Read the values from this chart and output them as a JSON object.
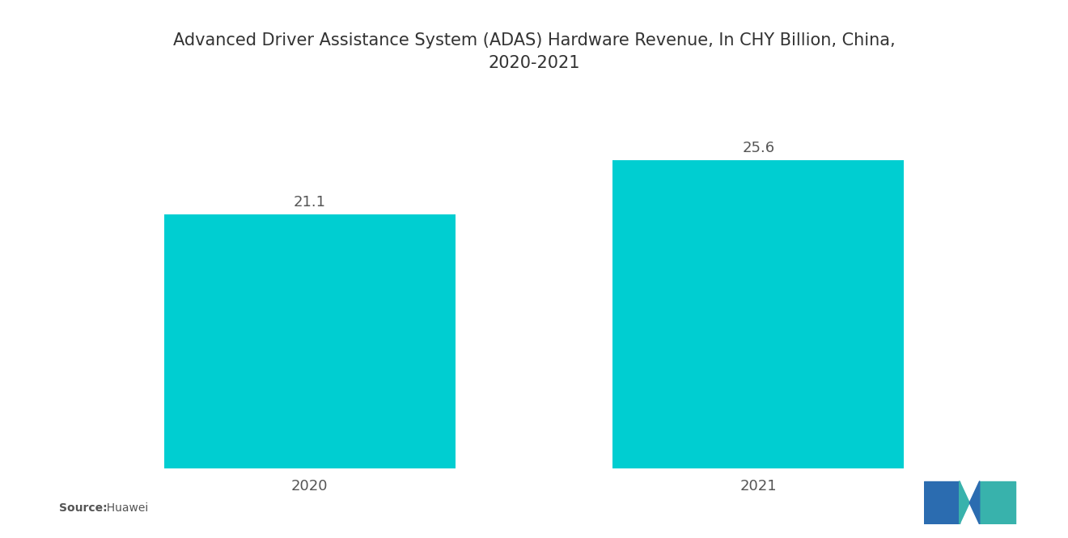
{
  "title": "Advanced Driver Assistance System (ADAS) Hardware Revenue, In CHY Billion, China,\n2020-2021",
  "categories": [
    "2020",
    "2021"
  ],
  "values": [
    21.1,
    25.6
  ],
  "bar_color": "#00CED1",
  "bar_width": 0.65,
  "value_labels": [
    "21.1",
    "25.6"
  ],
  "background_color": "#ffffff",
  "title_fontsize": 15,
  "label_fontsize": 13,
  "tick_fontsize": 13,
  "source_bold": "Source:",
  "source_normal": "  Huawei",
  "ylim": [
    0,
    30
  ],
  "xlim": [
    -0.5,
    1.5
  ],
  "title_color": "#333333",
  "text_color": "#555555",
  "logo_blue": "#2B6CB0",
  "logo_teal": "#38B2AC"
}
